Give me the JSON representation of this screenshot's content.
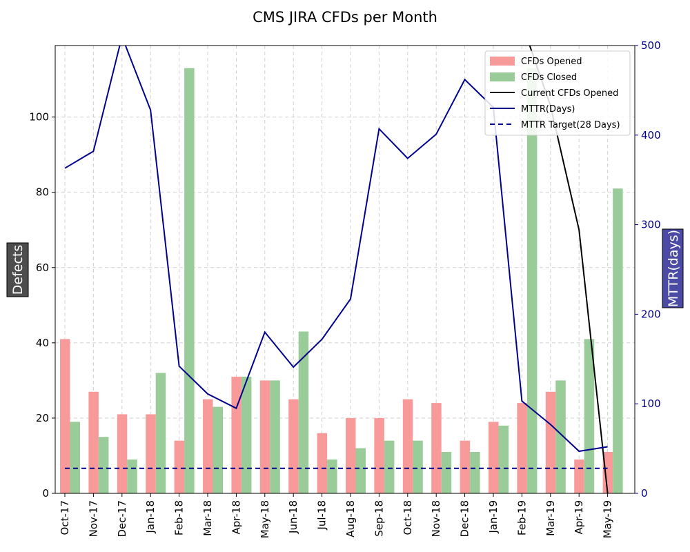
{
  "chart_data": {
    "type": "bar",
    "title": "CMS JIRA CFDs per Month",
    "categories": [
      "Oct-17",
      "Nov-17",
      "Dec-17",
      "Jan-18",
      "Feb-18",
      "Mar-18",
      "Apr-18",
      "May-18",
      "Jun-18",
      "Jul-18",
      "Aug-18",
      "Sep-18",
      "Oct-18",
      "Nov-18",
      "Dec-18",
      "Jan-19",
      "Feb-19",
      "Mar-19",
      "Apr-19",
      "May-19"
    ],
    "ylabel": "Defects",
    "y2label": "MTTR(days)",
    "ylim": [
      0,
      119
    ],
    "y2lim": [
      0,
      500
    ],
    "yticks": [
      0,
      20,
      40,
      60,
      80,
      100
    ],
    "y2ticks": [
      0,
      100,
      200,
      300,
      400,
      500
    ],
    "grid": true,
    "legend_position": "top-right",
    "series": [
      {
        "name": "CFDs Opened",
        "kind": "bar",
        "axis": "left",
        "color": "#f99a9a",
        "values": [
          41,
          27,
          21,
          21,
          14,
          25,
          31,
          30,
          25,
          16,
          20,
          20,
          25,
          24,
          14,
          19,
          24,
          27,
          9,
          11
        ]
      },
      {
        "name": "CFDs Closed",
        "kind": "bar",
        "axis": "left",
        "color": "#99cc99",
        "values": [
          19,
          15,
          9,
          32,
          113,
          23,
          31,
          30,
          43,
          9,
          12,
          14,
          14,
          11,
          11,
          18,
          113,
          30,
          41,
          81
        ]
      },
      {
        "name": "Current CFDs Opened",
        "kind": "line",
        "axis": "left",
        "color": "#000000",
        "dash": false,
        "values": [
          null,
          null,
          null,
          null,
          null,
          null,
          null,
          null,
          null,
          null,
          null,
          null,
          null,
          null,
          null,
          null,
          125,
          103,
          70,
          0
        ]
      },
      {
        "name": "MTTR(Days)",
        "kind": "line",
        "axis": "right",
        "color": "#00008b",
        "dash": false,
        "values": [
          363,
          382,
          510,
          428,
          142,
          111,
          95,
          180,
          141,
          172,
          217,
          407,
          374,
          401,
          462,
          431,
          103,
          77,
          47,
          52
        ]
      },
      {
        "name": "MTTR Target(28 Days)",
        "kind": "line",
        "axis": "right",
        "color": "#00008b",
        "dash": true,
        "values": [
          28,
          28,
          28,
          28,
          28,
          28,
          28,
          28,
          28,
          28,
          28,
          28,
          28,
          28,
          28,
          28,
          28,
          28,
          28,
          28
        ]
      }
    ],
    "colors": {
      "left_axis_text": "#000000",
      "right_axis_text": "#00008b",
      "ylabel_box": "#4d4d4d",
      "y2label_box": "#4b4ba6",
      "grid": "#d0d0d0"
    }
  }
}
